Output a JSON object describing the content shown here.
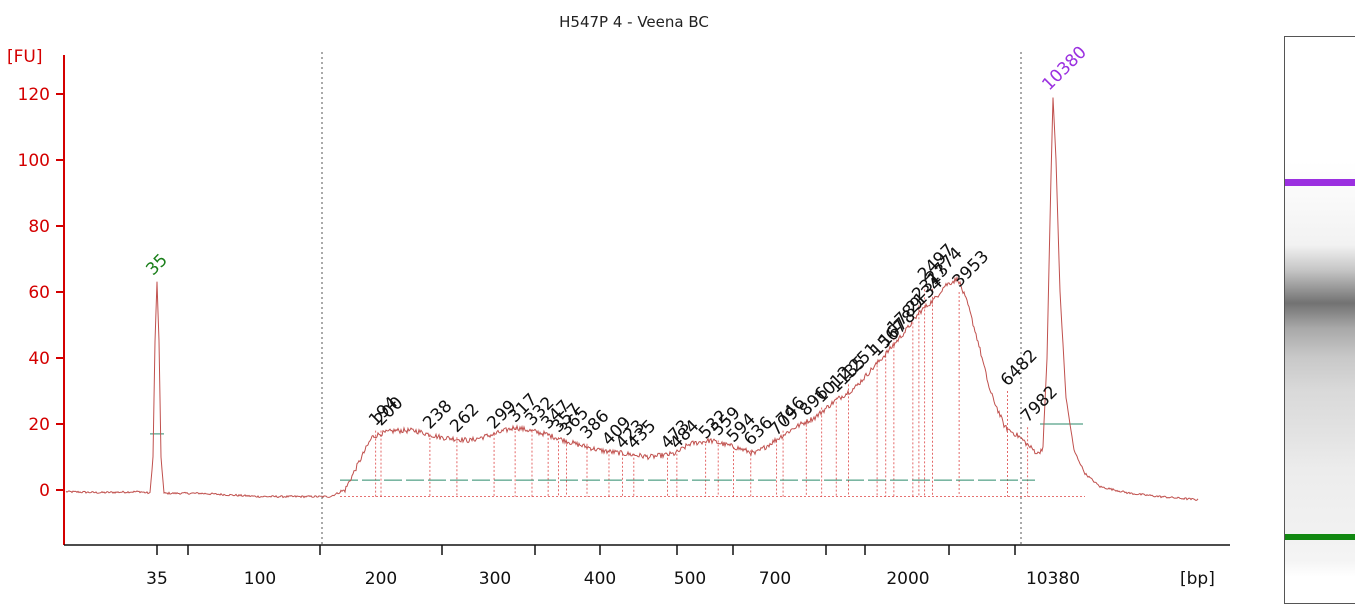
{
  "chart_data": {
    "type": "line",
    "title": "H547P 4 - Veena BC",
    "ylabel": "[FU]",
    "xlabel": "[bp]",
    "ylim": [
      -16,
      135
    ],
    "yticks": [
      0,
      20,
      40,
      60,
      80,
      100,
      120
    ],
    "x_tick_labels": [
      "35",
      "100",
      "200",
      "300",
      "400",
      "500",
      "700",
      "2000",
      "10380"
    ],
    "colors": {
      "axis": "#d40000",
      "trace": "#c0504d",
      "lower_marker": "#1a7f1a",
      "upper_marker": "#9b30e0",
      "gel_upper": "#9b30e0",
      "gel_lower": "#118811"
    },
    "markers": [
      {
        "label": "35",
        "bp": 35,
        "fu": 63,
        "color": "lower"
      },
      {
        "label": "10380",
        "bp": 10380,
        "fu": 119,
        "color": "upper"
      }
    ],
    "peaks": [
      {
        "label": "194",
        "bp": 194,
        "fu": 18
      },
      {
        "label": "200",
        "bp": 200,
        "fu": 18
      },
      {
        "label": "238",
        "bp": 238,
        "fu": 17
      },
      {
        "label": "262",
        "bp": 262,
        "fu": 16
      },
      {
        "label": "299",
        "bp": 299,
        "fu": 17
      },
      {
        "label": "317",
        "bp": 317,
        "fu": 19
      },
      {
        "label": "332",
        "bp": 332,
        "fu": 18
      },
      {
        "label": "347",
        "bp": 347,
        "fu": 17
      },
      {
        "label": "357",
        "bp": 357,
        "fu": 16
      },
      {
        "label": "365",
        "bp": 365,
        "fu": 15
      },
      {
        "label": "386",
        "bp": 386,
        "fu": 14
      },
      {
        "label": "409",
        "bp": 409,
        "fu": 12
      },
      {
        "label": "423",
        "bp": 423,
        "fu": 11
      },
      {
        "label": "435",
        "bp": 435,
        "fu": 11
      },
      {
        "label": "473",
        "bp": 473,
        "fu": 11
      },
      {
        "label": "484",
        "bp": 484,
        "fu": 11
      },
      {
        "label": "532",
        "bp": 532,
        "fu": 14
      },
      {
        "label": "559",
        "bp": 559,
        "fu": 15
      },
      {
        "label": "594",
        "bp": 594,
        "fu": 13
      },
      {
        "label": "636",
        "bp": 636,
        "fu": 12
      },
      {
        "label": "709",
        "bp": 709,
        "fu": 15
      },
      {
        "label": "746",
        "bp": 746,
        "fu": 18
      },
      {
        "label": "896",
        "bp": 896,
        "fu": 21
      },
      {
        "label": "1012",
        "bp": 1012,
        "fu": 25
      },
      {
        "label": "1135",
        "bp": 1135,
        "fu": 28
      },
      {
        "label": "1251",
        "bp": 1251,
        "fu": 32
      },
      {
        "label": "1567",
        "bp": 1567,
        "fu": 39
      },
      {
        "label": "1678",
        "bp": 1678,
        "fu": 42
      },
      {
        "label": "1789",
        "bp": 1789,
        "fu": 46
      },
      {
        "label": "2134",
        "bp": 2134,
        "fu": 52
      },
      {
        "label": "2313",
        "bp": 2313,
        "fu": 56
      },
      {
        "label": "2497",
        "bp": 2497,
        "fu": 62
      },
      {
        "label": "2774",
        "bp": 2774,
        "fu": 61
      },
      {
        "label": "3953",
        "bp": 3953,
        "fu": 60
      },
      {
        "label": "6482",
        "bp": 6482,
        "fu": 30
      },
      {
        "label": "7982",
        "bp": 7982,
        "fu": 19
      }
    ]
  }
}
